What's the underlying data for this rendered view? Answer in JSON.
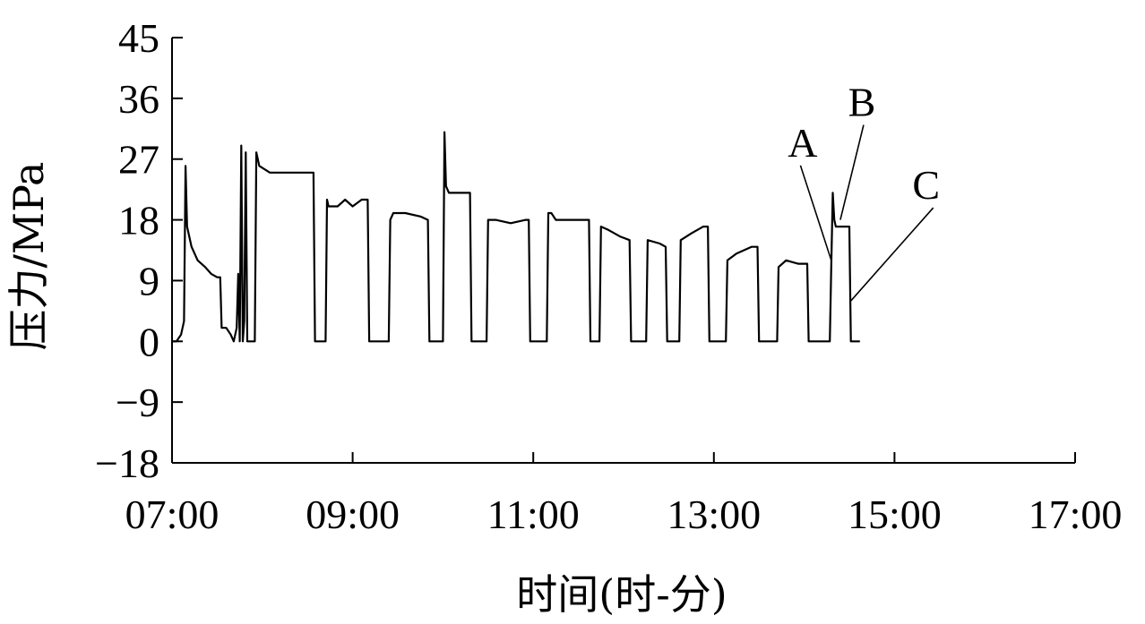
{
  "chart_data": {
    "type": "line",
    "title": "",
    "xlabel": "时间(时-分)",
    "ylabel": "压力/MPa",
    "xlim": [
      "07:00",
      "17:00"
    ],
    "ylim": [
      -18,
      45
    ],
    "xticks": [
      "07:00",
      "09:00",
      "11:00",
      "13:00",
      "15:00",
      "17:00"
    ],
    "yticks": [
      45,
      36,
      27,
      18,
      9,
      0,
      -9,
      -18
    ],
    "yticks_display": [
      "45",
      "36",
      "27",
      "18",
      "9",
      "0",
      "−9",
      "−18"
    ],
    "grid": false,
    "legend": "none",
    "line_color": "#000000",
    "series": [
      {
        "points": [
          [
            "07:00",
            0
          ],
          [
            "07:03",
            0
          ],
          [
            "07:06",
            1
          ],
          [
            "07:08",
            3
          ],
          [
            "07:09",
            26
          ],
          [
            "07:10",
            17
          ],
          [
            "07:13",
            14
          ],
          [
            "07:17",
            12
          ],
          [
            "07:22",
            11
          ],
          [
            "07:26",
            10
          ],
          [
            "07:30",
            9.5
          ],
          [
            "07:32",
            9.5
          ],
          [
            "07:33",
            2
          ],
          [
            "07:36",
            2
          ],
          [
            "07:39",
            1
          ],
          [
            "07:41",
            0
          ],
          [
            "07:43",
            2
          ],
          [
            "07:44",
            10
          ],
          [
            "07:45",
            0
          ],
          [
            "07:46",
            29
          ],
          [
            "07:47",
            0
          ],
          [
            "07:48",
            3
          ],
          [
            "07:49",
            28
          ],
          [
            "07:50",
            0
          ],
          [
            "07:55",
            0
          ],
          [
            "07:56",
            28
          ],
          [
            "07:58",
            26
          ],
          [
            "08:05",
            25
          ],
          [
            "08:34",
            25
          ],
          [
            "08:35",
            0
          ],
          [
            "08:42",
            0
          ],
          [
            "08:43",
            21
          ],
          [
            "08:44",
            20
          ],
          [
            "08:50",
            20
          ],
          [
            "08:55",
            21
          ],
          [
            "09:00",
            20
          ],
          [
            "09:06",
            21
          ],
          [
            "09:10",
            21
          ],
          [
            "09:11",
            0
          ],
          [
            "09:24",
            0
          ],
          [
            "09:25",
            18
          ],
          [
            "09:27",
            19
          ],
          [
            "09:35",
            19
          ],
          [
            "09:45",
            18.5
          ],
          [
            "09:50",
            18
          ],
          [
            "09:51",
            0
          ],
          [
            "10:00",
            0
          ],
          [
            "10:01",
            31
          ],
          [
            "10:02",
            23
          ],
          [
            "10:04",
            22
          ],
          [
            "10:18",
            22
          ],
          [
            "10:19",
            0
          ],
          [
            "10:29",
            0
          ],
          [
            "10:30",
            18
          ],
          [
            "10:35",
            18
          ],
          [
            "10:45",
            17.5
          ],
          [
            "10:55",
            18
          ],
          [
            "10:57",
            18
          ],
          [
            "10:58",
            0
          ],
          [
            "11:09",
            0
          ],
          [
            "11:10",
            19
          ],
          [
            "11:12",
            19
          ],
          [
            "11:15",
            18
          ],
          [
            "11:37",
            18
          ],
          [
            "11:38",
            0
          ],
          [
            "11:44",
            0
          ],
          [
            "11:45",
            17
          ],
          [
            "11:50",
            16.5
          ],
          [
            "11:58",
            15.5
          ],
          [
            "12:04",
            15
          ],
          [
            "12:05",
            0
          ],
          [
            "12:15",
            0
          ],
          [
            "12:16",
            15
          ],
          [
            "12:24",
            14.5
          ],
          [
            "12:28",
            14
          ],
          [
            "12:29",
            0
          ],
          [
            "12:37",
            0
          ],
          [
            "12:38",
            15
          ],
          [
            "12:45",
            16
          ],
          [
            "12:53",
            17
          ],
          [
            "12:56",
            17
          ],
          [
            "12:57",
            0
          ],
          [
            "13:08",
            0
          ],
          [
            "13:09",
            12
          ],
          [
            "13:15",
            13
          ],
          [
            "13:25",
            14
          ],
          [
            "13:29",
            14
          ],
          [
            "13:30",
            0
          ],
          [
            "13:42",
            0
          ],
          [
            "13:43",
            11
          ],
          [
            "13:48",
            12
          ],
          [
            "13:56",
            11.5
          ],
          [
            "14:02",
            11.5
          ],
          [
            "14:03",
            0
          ],
          [
            "14:17",
            0
          ],
          [
            "14:18",
            11
          ],
          [
            "14:19",
            22
          ],
          [
            "14:20",
            18
          ],
          [
            "14:21",
            17
          ],
          [
            "14:30",
            17
          ],
          [
            "14:31",
            0
          ],
          [
            "14:37",
            0
          ]
        ]
      }
    ],
    "annotations": [
      {
        "text": "A",
        "target": [
          "14:18",
          12
        ]
      },
      {
        "text": "B",
        "target": [
          "14:24",
          18
        ]
      },
      {
        "text": "C",
        "target": [
          "14:31",
          6
        ]
      }
    ]
  }
}
